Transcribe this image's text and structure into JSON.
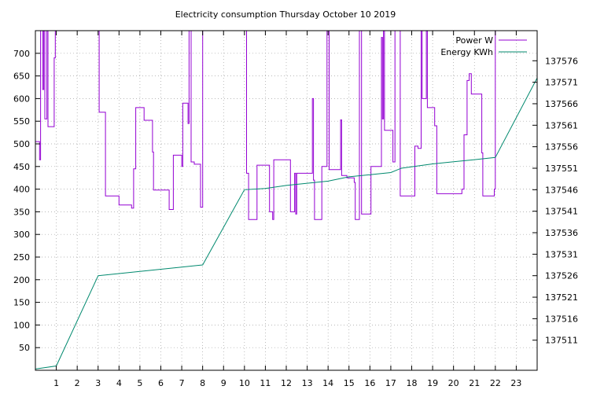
{
  "chart_data": {
    "type": "line",
    "title": "Electricity consumption Thursday October 10 2019",
    "xlim": [
      0,
      24
    ],
    "x_ticks": [
      1,
      2,
      3,
      4,
      5,
      6,
      7,
      8,
      9,
      10,
      11,
      12,
      13,
      14,
      15,
      16,
      17,
      18,
      19,
      20,
      21,
      22,
      23
    ],
    "y_left": {
      "lim": [
        0,
        750
      ],
      "ticks": [
        50,
        100,
        150,
        200,
        250,
        300,
        350,
        400,
        450,
        500,
        550,
        600,
        650,
        700
      ]
    },
    "y_right": {
      "lim": [
        137504,
        137583
      ],
      "ticks": [
        137511,
        137516,
        137521,
        137526,
        137531,
        137536,
        137541,
        137546,
        137551,
        137556,
        137561,
        137566,
        137571,
        137576
      ]
    },
    "grid": true,
    "legend_position": "top-right",
    "series": [
      {
        "name": "Power W",
        "axis": "left",
        "color": "#9400d3",
        "step": true,
        "points": [
          [
            0.0,
            505
          ],
          [
            0.2,
            465
          ],
          [
            0.25,
            750
          ],
          [
            0.35,
            620
          ],
          [
            0.4,
            750
          ],
          [
            0.45,
            555
          ],
          [
            0.55,
            750
          ],
          [
            0.6,
            538
          ],
          [
            0.9,
            690
          ],
          [
            0.95,
            750
          ],
          [
            1.0,
            750
          ],
          [
            3.0,
            750
          ],
          [
            3.05,
            570
          ],
          [
            3.35,
            385
          ],
          [
            4.0,
            365
          ],
          [
            4.6,
            358
          ],
          [
            4.7,
            445
          ],
          [
            4.8,
            580
          ],
          [
            5.2,
            552
          ],
          [
            5.6,
            482
          ],
          [
            5.65,
            398
          ],
          [
            6.4,
            355
          ],
          [
            6.6,
            475
          ],
          [
            7.0,
            450
          ],
          [
            7.05,
            590
          ],
          [
            7.3,
            545
          ],
          [
            7.35,
            750
          ],
          [
            7.45,
            460
          ],
          [
            7.6,
            455
          ],
          [
            7.9,
            360
          ],
          [
            8.0,
            750
          ],
          [
            10.05,
            750
          ],
          [
            10.1,
            435
          ],
          [
            10.2,
            333
          ],
          [
            10.6,
            453
          ],
          [
            11.2,
            350
          ],
          [
            11.35,
            333
          ],
          [
            11.4,
            465
          ],
          [
            12.2,
            350
          ],
          [
            12.4,
            435
          ],
          [
            12.45,
            345
          ],
          [
            12.5,
            435
          ],
          [
            13.2,
            435
          ],
          [
            13.25,
            600
          ],
          [
            13.3,
            420
          ],
          [
            13.35,
            333
          ],
          [
            13.7,
            450
          ],
          [
            13.95,
            750
          ],
          [
            14.05,
            443
          ],
          [
            14.6,
            553
          ],
          [
            14.65,
            430
          ],
          [
            14.9,
            425
          ],
          [
            15.25,
            415
          ],
          [
            15.3,
            333
          ],
          [
            15.5,
            750
          ],
          [
            15.6,
            345
          ],
          [
            16.05,
            450
          ],
          [
            16.55,
            735
          ],
          [
            16.6,
            555
          ],
          [
            16.65,
            750
          ],
          [
            16.7,
            530
          ],
          [
            17.1,
            460
          ],
          [
            17.2,
            750
          ],
          [
            17.35,
            750
          ],
          [
            17.45,
            385
          ],
          [
            18.15,
            495
          ],
          [
            18.3,
            490
          ],
          [
            18.45,
            750
          ],
          [
            18.5,
            600
          ],
          [
            18.7,
            750
          ],
          [
            18.75,
            580
          ],
          [
            19.1,
            540
          ],
          [
            19.2,
            390
          ],
          [
            20.4,
            400
          ],
          [
            20.5,
            520
          ],
          [
            20.65,
            640
          ],
          [
            20.75,
            655
          ],
          [
            20.85,
            610
          ],
          [
            21.35,
            480
          ],
          [
            21.4,
            385
          ],
          [
            21.95,
            400
          ],
          [
            22.0,
            750
          ],
          [
            22.05,
            750
          ]
        ]
      },
      {
        "name": "Energy KWh",
        "axis": "right",
        "color": "#00896e",
        "step": false,
        "points": [
          [
            0.0,
            137504.3
          ],
          [
            1.0,
            137505.0
          ],
          [
            3.0,
            137526.0
          ],
          [
            5.0,
            137527.0
          ],
          [
            7.0,
            137528.0
          ],
          [
            8.0,
            137528.5
          ],
          [
            10.0,
            137546.0
          ],
          [
            11.0,
            137546.3
          ],
          [
            12.0,
            137547.0
          ],
          [
            13.0,
            137547.5
          ],
          [
            14.0,
            137548.0
          ],
          [
            15.0,
            137549.0
          ],
          [
            16.0,
            137549.5
          ],
          [
            17.0,
            137550.0
          ],
          [
            17.5,
            137551.0
          ],
          [
            19.0,
            137552.0
          ],
          [
            20.0,
            137552.5
          ],
          [
            21.0,
            137553.0
          ],
          [
            22.0,
            137553.5
          ],
          [
            24.0,
            137572.0
          ]
        ]
      }
    ]
  }
}
